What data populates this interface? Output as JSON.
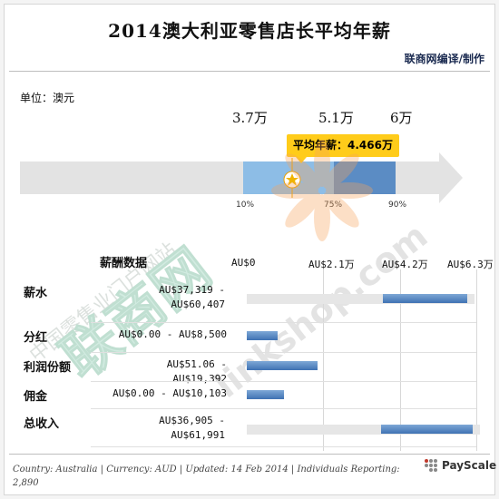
{
  "title": "2014澳大利亚零售店长平均年薪",
  "maker": "联商网编译/制作",
  "unit": "单位：澳元",
  "top_ticks": [
    "3.7万",
    "5.1万",
    "6万"
  ],
  "average_label": "平均年薪：4.466万",
  "percentiles": [
    "10%",
    "75%",
    "90%"
  ],
  "footer": "Country: Australia | Currency: AUD | Updated: 14 Feb 2014 | Individuals Reporting: 2,890",
  "brand": "PayScale",
  "watermark": {
    "text_cn": "中国零售业门户网站",
    "text_logo": "联商网",
    "text_url": "linkshop.com"
  },
  "colors": {
    "bar": "#4a7ebb",
    "avg": "#ffcc1a",
    "arrow": "#d9d9d9"
  },
  "chart_data": {
    "type": "bar",
    "header": "薪酬数据",
    "x_ticks": [
      "AU$0",
      "AU$2.1万",
      "AU$4.2万",
      "AU$6.3万"
    ],
    "xlim": [
      0,
      63000
    ],
    "rows": [
      {
        "name": "薪水",
        "range_text": [
          "AU$37,319 -",
          "AU$60,407"
        ],
        "low": 37319,
        "high": 60407
      },
      {
        "name": "分红",
        "range_text": [
          "AU$0.00 - AU$8,500"
        ],
        "low": 0,
        "high": 8500
      },
      {
        "name": "利润份额",
        "range_text": [
          "AU$51.06 - AU$19,392"
        ],
        "low": 51.06,
        "high": 19392
      },
      {
        "name": "佣金",
        "range_text": [
          "AU$0.00 - AU$10,103"
        ],
        "low": 0,
        "high": 10103
      },
      {
        "name": "总收入",
        "range_text": [
          "AU$36,905 -",
          "AU$61,991"
        ],
        "low": 36905,
        "high": 61991
      }
    ],
    "overview": {
      "p10": 37000,
      "p75": 51000,
      "p90": 60000,
      "average": 44660
    }
  }
}
